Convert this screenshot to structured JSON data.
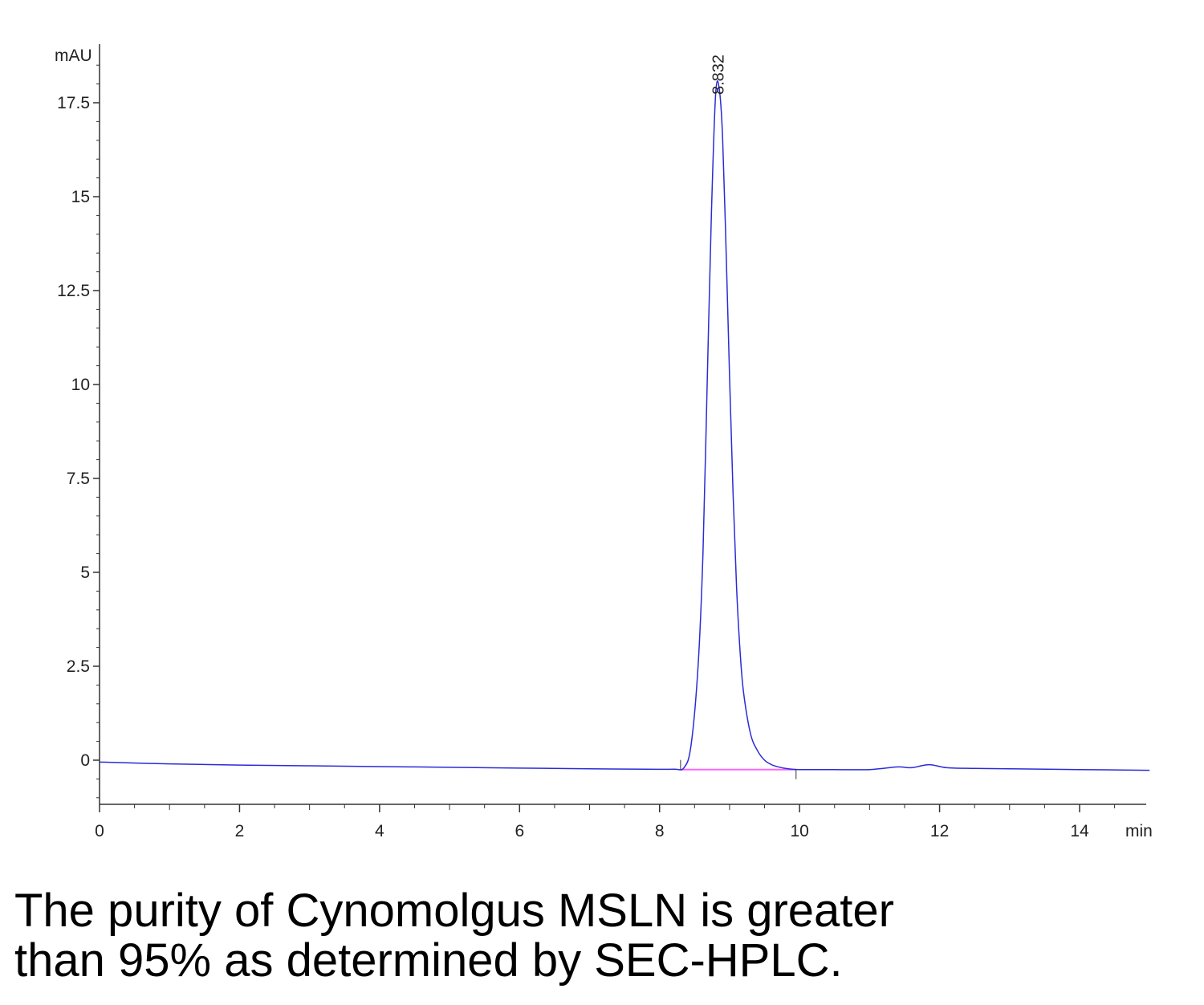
{
  "chart_data": {
    "type": "line",
    "ylabel": "mAU",
    "xlabel": "min",
    "xlim": [
      0,
      15
    ],
    "ylim": [
      -1.2,
      19
    ],
    "x_ticks": [
      0,
      2,
      4,
      6,
      8,
      10,
      12,
      14
    ],
    "y_ticks": [
      0,
      2.5,
      5,
      7.5,
      10,
      12.5,
      15,
      17.5
    ],
    "y_tick_labels": [
      "0",
      "2.5",
      "5",
      "7.5",
      "10",
      "12.5",
      "15",
      "17.5"
    ],
    "grid": false,
    "peak_annotation": {
      "x": 8.832,
      "label": "8.832"
    },
    "baseline_segment": {
      "x": [
        8.3,
        9.95
      ],
      "y": [
        -0.25,
        -0.25
      ]
    },
    "series": [
      {
        "x": [
          0,
          1,
          2,
          3,
          4,
          5,
          6,
          7,
          7.8,
          8.2,
          8.35,
          8.45,
          8.55,
          8.62,
          8.68,
          8.74,
          8.8,
          8.85,
          8.9,
          8.95,
          9.0,
          9.05,
          9.1,
          9.15,
          9.2,
          9.3,
          9.4,
          9.5,
          9.6,
          9.7,
          9.8,
          10,
          10.5,
          11,
          11.4,
          11.6,
          11.85,
          12.1,
          12.5,
          13,
          14,
          15
        ],
        "y": [
          -0.05,
          -0.1,
          -0.13,
          -0.15,
          -0.17,
          -0.19,
          -0.21,
          -0.23,
          -0.24,
          -0.24,
          -0.2,
          0.4,
          2.5,
          5.5,
          10.0,
          14.5,
          17.7,
          17.9,
          16.6,
          13.6,
          10.2,
          7.1,
          4.6,
          2.9,
          1.8,
          0.7,
          0.25,
          0.0,
          -0.12,
          -0.18,
          -0.22,
          -0.25,
          -0.25,
          -0.25,
          -0.18,
          -0.2,
          -0.12,
          -0.2,
          -0.22,
          -0.23,
          -0.25,
          -0.27
        ]
      }
    ],
    "colors": {
      "trace": "#2b2bd6",
      "baseline": "#ff66ff",
      "axis": "#333333"
    }
  },
  "caption": {
    "line1": "The purity of Cynomolgus MSLN is greater",
    "line2": "than 95% as determined by SEC-HPLC."
  }
}
